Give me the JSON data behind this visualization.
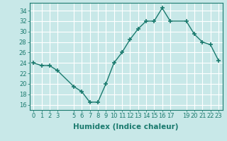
{
  "x": [
    0,
    1,
    2,
    3,
    5,
    6,
    7,
    8,
    9,
    10,
    11,
    12,
    13,
    14,
    15,
    16,
    17,
    19,
    20,
    21,
    22,
    23
  ],
  "y": [
    24,
    23.5,
    23.5,
    22.5,
    19.5,
    18.5,
    16.5,
    16.5,
    20,
    24,
    26,
    28.5,
    30.5,
    32,
    32,
    34.5,
    32,
    32,
    29.5,
    28,
    27.5,
    24.5
  ],
  "line_color": "#1a7a6e",
  "bg_color": "#c8e8e8",
  "grid_color": "#ffffff",
  "tick_color": "#1a7a6e",
  "xlabel": "Humidex (Indice chaleur)",
  "ylim": [
    15,
    35.5
  ],
  "yticks": [
    16,
    18,
    20,
    22,
    24,
    26,
    28,
    30,
    32,
    34
  ],
  "xticks": [
    0,
    1,
    2,
    3,
    5,
    6,
    7,
    8,
    9,
    10,
    11,
    12,
    13,
    14,
    15,
    16,
    17,
    19,
    20,
    21,
    22,
    23
  ],
  "xtick_labels": [
    "0",
    "1",
    "2",
    "3",
    "5",
    "6",
    "7",
    "8",
    "9",
    "10",
    "11",
    "12",
    "13",
    "14",
    "15",
    "16",
    "17",
    "19",
    "20",
    "21",
    "22",
    "23"
  ],
  "marker": "+",
  "markersize": 4,
  "linewidth": 1.0,
  "xlabel_fontsize": 7.5,
  "tick_fontsize": 6.0,
  "xlim": [
    -0.5,
    23.5
  ]
}
